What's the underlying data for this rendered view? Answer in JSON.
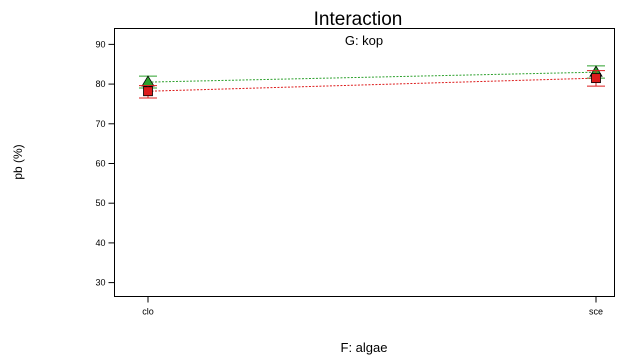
{
  "chart_data": {
    "type": "line",
    "title": "Interaction",
    "subtitle": "G: kop",
    "xlabel": "F: algae",
    "ylabel": "pb (%)",
    "categories": [
      "clo",
      "sce"
    ],
    "ylim": [
      26.5,
      94
    ],
    "yticks": [
      30,
      40,
      50,
      60,
      70,
      80,
      90
    ],
    "grid": false,
    "series": [
      {
        "color": "#2ca02c",
        "marker": "triangle",
        "values": [
          80.5,
          83.0
        ],
        "err_low": [
          79.0,
          81.5
        ],
        "err_high": [
          82.0,
          84.6
        ]
      },
      {
        "color": "#dd1c1c",
        "marker": "square",
        "values": [
          78.2,
          81.5
        ],
        "err_low": [
          76.5,
          79.5
        ],
        "err_high": [
          79.6,
          83.4
        ]
      }
    ]
  }
}
